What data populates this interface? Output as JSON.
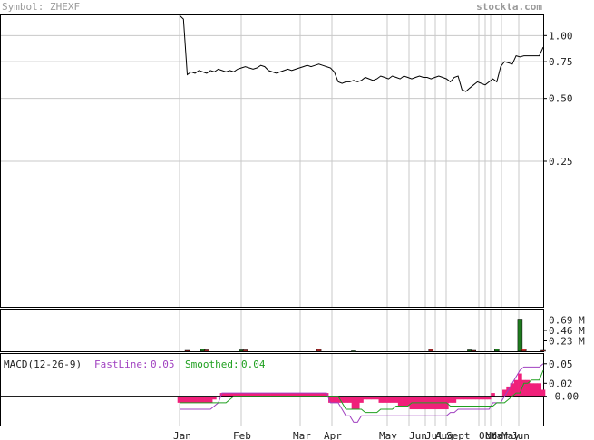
{
  "header": {
    "symbol_label": "Symbol: ZHEXF",
    "brand": "stockta.com"
  },
  "colors": {
    "price_line": "#000000",
    "volume_up": "#1e7a1e",
    "volume_down": "#cc3333",
    "macd_fast": "#a040c0",
    "macd_smoothed": "#20a020",
    "macd_histogram": "#f0207a",
    "grid": "#c8c8c8",
    "header_text": "#9a9a9a"
  },
  "chart_data": [
    {
      "type": "line",
      "name": "price",
      "scale": "log",
      "ylim": [
        0.05,
        1.25
      ],
      "y_ticks": [
        {
          "value": 1.0,
          "label": "1.00"
        },
        {
          "value": 0.75,
          "label": "0.75"
        },
        {
          "value": 0.5,
          "label": "0.50"
        },
        {
          "value": 0.25,
          "label": "0.25"
        }
      ],
      "x_ticks": [
        "Jan",
        "Feb",
        "Mar",
        "Apr",
        "May",
        "Jun",
        "Jul",
        "Aug",
        "Sept",
        "Oct",
        "Nov",
        "Mar",
        "May",
        "Jun"
      ],
      "values": [
        1.3,
        1.2,
        0.65,
        0.67,
        0.66,
        0.68,
        0.67,
        0.66,
        0.68,
        0.67,
        0.69,
        0.68,
        0.67,
        0.68,
        0.67,
        0.69,
        0.7,
        0.71,
        0.7,
        0.69,
        0.7,
        0.72,
        0.71,
        0.68,
        0.67,
        0.66,
        0.67,
        0.68,
        0.69,
        0.68,
        0.69,
        0.7,
        0.71,
        0.72,
        0.71,
        0.72,
        0.73,
        0.72,
        0.71,
        0.7,
        0.67,
        0.6,
        0.59,
        0.6,
        0.6,
        0.61,
        0.6,
        0.61,
        0.63,
        0.62,
        0.61,
        0.62,
        0.64,
        0.63,
        0.62,
        0.64,
        0.63,
        0.62,
        0.64,
        0.63,
        0.62,
        0.63,
        0.64,
        0.63,
        0.63,
        0.62,
        0.63,
        0.64,
        0.63,
        0.62,
        0.6,
        0.63,
        0.64,
        0.55,
        0.54,
        0.56,
        0.58,
        0.6,
        0.59,
        0.58,
        0.6,
        0.62,
        0.6,
        0.71,
        0.75,
        0.74,
        0.73,
        0.8,
        0.79,
        0.8,
        0.8,
        0.8,
        0.8,
        0.8,
        0.88
      ]
    },
    {
      "type": "bar",
      "name": "volume",
      "unit": "M",
      "ylim": [
        0,
        0.92
      ],
      "y_ticks": [
        "0.69 M",
        "0.46 M",
        "0.23 M"
      ],
      "bars": [
        {
          "i": 2,
          "v": 0.02,
          "up": false
        },
        {
          "i": 6,
          "v": 0.05,
          "up": true
        },
        {
          "i": 7,
          "v": 0.03,
          "up": false
        },
        {
          "i": 16,
          "v": 0.03,
          "up": true
        },
        {
          "i": 17,
          "v": 0.03,
          "up": false
        },
        {
          "i": 36,
          "v": 0.04,
          "up": false
        },
        {
          "i": 45,
          "v": 0.01,
          "up": true
        },
        {
          "i": 65,
          "v": 0.04,
          "up": false
        },
        {
          "i": 75,
          "v": 0.03,
          "up": true
        },
        {
          "i": 76,
          "v": 0.02,
          "up": false
        },
        {
          "i": 82,
          "v": 0.05,
          "up": true
        },
        {
          "i": 88,
          "v": 0.71,
          "up": true
        },
        {
          "i": 89,
          "v": 0.05,
          "up": false
        },
        {
          "i": 94,
          "v": 0.02,
          "up": false
        }
      ]
    },
    {
      "type": "line",
      "name": "macd",
      "title": "MACD(12-26-9)",
      "legend": {
        "fast_label": "FastLine:",
        "fast_value": "0.05",
        "smoothed_label": "Smoothed:",
        "smoothed_value": "0.04"
      },
      "ylim": [
        -0.045,
        0.065
      ],
      "y_ticks": [
        {
          "value": 0.05,
          "label": "0.05"
        },
        {
          "value": 0.02,
          "label": "0.02"
        },
        {
          "value": -0.0,
          "label": "-0.00"
        }
      ],
      "series": [
        {
          "name": "FastLine",
          "values": [
            -0.02,
            -0.02,
            -0.02,
            -0.02,
            -0.02,
            -0.02,
            -0.02,
            -0.02,
            -0.02,
            -0.015,
            -0.01,
            0.005,
            0.005,
            0.005,
            0.005,
            0.005,
            0.005,
            0.005,
            0.005,
            0.005,
            0.005,
            0.005,
            0.005,
            0.005,
            0.005,
            0.005,
            0.005,
            0.005,
            0.005,
            0.005,
            0.005,
            0.005,
            0.005,
            0.005,
            0.005,
            0.005,
            0.005,
            0.005,
            0.005,
            -0.01,
            -0.01,
            -0.01,
            -0.02,
            -0.03,
            -0.03,
            -0.04,
            -0.04,
            -0.03,
            -0.03,
            -0.03,
            -0.03,
            -0.03,
            -0.03,
            -0.03,
            -0.03,
            -0.03,
            -0.03,
            -0.03,
            -0.03,
            -0.03,
            -0.03,
            -0.03,
            -0.03,
            -0.03,
            -0.03,
            -0.03,
            -0.03,
            -0.03,
            -0.03,
            -0.03,
            -0.025,
            -0.025,
            -0.02,
            -0.02,
            -0.02,
            -0.02,
            -0.02,
            -0.02,
            -0.02,
            -0.02,
            -0.02,
            -0.01,
            -0.01,
            -0.01,
            0.0,
            0.01,
            0.02,
            0.03,
            0.04,
            0.045,
            0.045,
            0.045,
            0.045,
            0.045,
            0.05
          ]
        },
        {
          "name": "Smoothed",
          "values": [
            -0.01,
            -0.01,
            -0.01,
            -0.01,
            -0.01,
            -0.01,
            -0.01,
            -0.01,
            -0.01,
            -0.01,
            -0.01,
            -0.01,
            -0.01,
            -0.005,
            0.0,
            0.0,
            0.0,
            0.0,
            0.0,
            0.0,
            0.0,
            0.0,
            0.0,
            0.0,
            0.0,
            0.0,
            0.0,
            0.0,
            0.0,
            0.0,
            0.0,
            0.0,
            0.0,
            0.0,
            0.0,
            0.0,
            0.0,
            0.0,
            0.0,
            0.0,
            0.0,
            0.0,
            -0.01,
            -0.02,
            -0.02,
            -0.02,
            -0.02,
            -0.02,
            -0.025,
            -0.025,
            -0.025,
            -0.025,
            -0.02,
            -0.02,
            -0.02,
            -0.02,
            -0.015,
            -0.015,
            -0.015,
            -0.015,
            -0.01,
            -0.01,
            -0.01,
            -0.01,
            -0.01,
            -0.01,
            -0.01,
            -0.01,
            -0.01,
            -0.01,
            -0.015,
            -0.015,
            -0.015,
            -0.015,
            -0.015,
            -0.015,
            -0.015,
            -0.015,
            -0.015,
            -0.015,
            -0.015,
            -0.015,
            -0.01,
            -0.01,
            -0.01,
            -0.005,
            0.0,
            0.005,
            0.005,
            0.02,
            0.02,
            0.025,
            0.025,
            0.025,
            0.04
          ]
        },
        {
          "name": "Histogram",
          "values": [
            -0.01,
            -0.01,
            -0.01,
            -0.01,
            -0.01,
            -0.01,
            -0.01,
            -0.01,
            -0.01,
            -0.005,
            0.0,
            0.005,
            0.005,
            0.005,
            0.005,
            0.005,
            0.005,
            0.005,
            0.005,
            0.005,
            0.005,
            0.005,
            0.005,
            0.005,
            0.005,
            0.005,
            0.005,
            0.005,
            0.005,
            0.005,
            0.005,
            0.005,
            0.005,
            0.005,
            0.005,
            0.005,
            0.005,
            0.005,
            0.005,
            -0.01,
            -0.01,
            -0.01,
            -0.01,
            -0.01,
            -0.01,
            -0.02,
            -0.02,
            -0.01,
            -0.005,
            -0.005,
            -0.005,
            -0.005,
            -0.01,
            -0.01,
            -0.01,
            -0.01,
            -0.01,
            -0.015,
            -0.015,
            -0.015,
            -0.02,
            -0.02,
            -0.02,
            -0.02,
            -0.02,
            -0.02,
            -0.02,
            -0.02,
            -0.02,
            -0.02,
            -0.01,
            -0.01,
            -0.005,
            -0.005,
            -0.005,
            -0.005,
            -0.005,
            -0.005,
            -0.005,
            -0.005,
            -0.005,
            0.005,
            0.0,
            0.0,
            0.01,
            0.015,
            0.02,
            0.025,
            0.035,
            0.025,
            0.025,
            0.02,
            0.02,
            0.02,
            0.01
          ]
        }
      ]
    }
  ]
}
